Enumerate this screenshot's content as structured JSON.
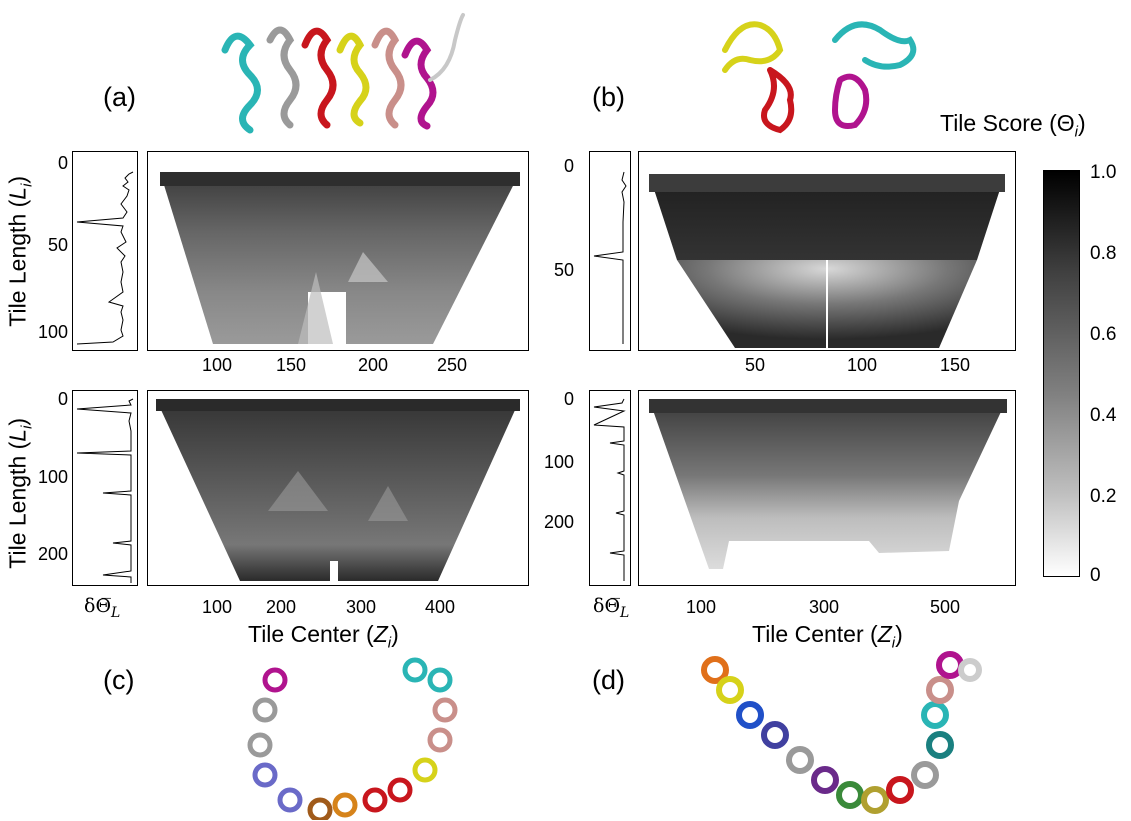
{
  "panels": {
    "a": {
      "letter": "(a)"
    },
    "b": {
      "letter": "(b)"
    },
    "c": {
      "letter": "(c)"
    },
    "d": {
      "letter": "(d)"
    }
  },
  "axes": {
    "y_label_prefix": "Tile Length (",
    "y_label_var": "L",
    "y_label_sub": "i",
    "y_label_suffix": ")",
    "x_label_prefix": "Tile Center (",
    "x_label_var": "Z",
    "x_label_sub": "i",
    "x_label_suffix": ")",
    "delta_label": "δΘ̅",
    "delta_sub": "L"
  },
  "plots": {
    "top_left": {
      "y_ticks": [
        "0",
        "50",
        "100"
      ],
      "x_ticks": [
        "100",
        "150",
        "200",
        "250"
      ]
    },
    "top_right": {
      "y_ticks": [
        "0",
        "50"
      ],
      "x_ticks": [
        "50",
        "100",
        "150"
      ]
    },
    "bot_left": {
      "y_ticks": [
        "0",
        "100",
        "200"
      ],
      "x_ticks": [
        "100",
        "200",
        "300",
        "400"
      ]
    },
    "bot_right": {
      "y_ticks": [
        "0",
        "100",
        "200"
      ],
      "x_ticks": [
        "100",
        "300",
        "500"
      ]
    }
  },
  "colorbar": {
    "title_prefix": "Tile Score (",
    "title_var": "Θ",
    "title_sub": "i",
    "title_suffix": ")",
    "ticks": [
      "1.0",
      "0.8",
      "0.6",
      "0.4",
      "0.2",
      "0"
    ]
  },
  "colors": {
    "helix_colors": [
      "#2ab5b5",
      "#9a9a9a",
      "#c8161d",
      "#d6d21a",
      "#c98f8a",
      "#b0138e"
    ],
    "domain_colors_b": [
      "#d6d21a",
      "#2ab5b5",
      "#c8161d",
      "#b0138e"
    ]
  }
}
